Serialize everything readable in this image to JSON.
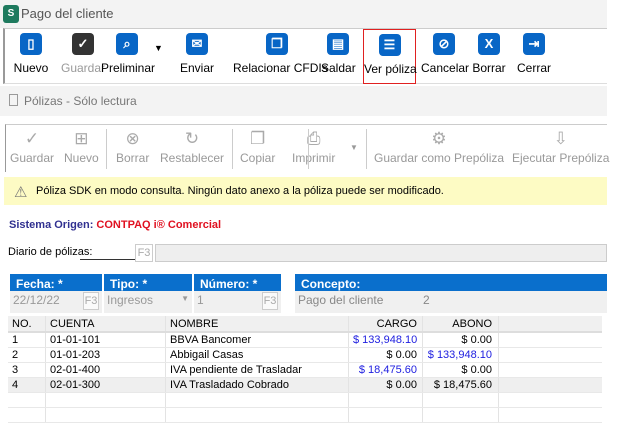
{
  "window": {
    "title": "Pago del cliente",
    "app_icon": "S"
  },
  "toolbar": [
    {
      "label": "Nuevo",
      "icon": "new-document-icon",
      "glyph": "▯",
      "enabled": true
    },
    {
      "label": "Guardar",
      "icon": "checkmark-icon",
      "glyph": "✓",
      "enabled": false
    },
    {
      "label": "Preliminar",
      "icon": "preview-icon",
      "glyph": "⌕",
      "enabled": true
    },
    {
      "label": "Enviar",
      "icon": "send-mail-icon",
      "glyph": "✉",
      "enabled": true
    },
    {
      "label": "Relacionar CFDIs",
      "icon": "copy-documents-icon",
      "glyph": "❐",
      "enabled": true
    },
    {
      "label": "Saldar",
      "icon": "settle-icon",
      "glyph": "▤",
      "enabled": true
    },
    {
      "label": "Ver póliza",
      "icon": "list-document-icon",
      "glyph": "☰",
      "enabled": true
    },
    {
      "label": "Cancelar",
      "icon": "cancel-icon",
      "glyph": "⊘",
      "enabled": true
    },
    {
      "label": "Borrar",
      "icon": "delete-x-icon",
      "glyph": "X",
      "enabled": true
    },
    {
      "label": "Cerrar",
      "icon": "exit-door-icon",
      "glyph": "⇥",
      "enabled": true
    }
  ],
  "polizas": {
    "title": "Pólizas - Sólo lectura",
    "toolbar": [
      {
        "label": "Guardar",
        "glyph": "✓"
      },
      {
        "label": "Nuevo",
        "glyph": "⊞"
      },
      {
        "label": "Borrar",
        "glyph": "⊗"
      },
      {
        "label": "Restablecer",
        "glyph": "↻"
      },
      {
        "label": "Copiar",
        "glyph": "❐"
      },
      {
        "label": "Imprimir",
        "glyph": "⎙"
      },
      {
        "label": "Guardar como Prepóliza",
        "glyph": "⚙"
      },
      {
        "label": "Ejecutar Prepóliza",
        "glyph": "⇩"
      }
    ],
    "banner": "Póliza SDK en modo consulta. Ningún dato anexo a la póliza puede ser modificado.",
    "origin_label": "Sistema Origen:",
    "origin_value": "CONTPAQ i® Comercial",
    "diario_label": "Diario de pólizas:",
    "f3": "F3",
    "fecha_label": "Fecha: *",
    "fecha": "22/12/22",
    "tipo_label": "Tipo: *",
    "tipo": "Ingresos",
    "numero_label": "Número: *",
    "numero": "1",
    "concepto_label": "Concepto:",
    "concepto": "Pago del cliente",
    "concepto_extra": "2",
    "columns": [
      "NO.",
      "CUENTA",
      "NOMBRE",
      "CARGO",
      "ABONO"
    ],
    "rows": [
      {
        "no": "1",
        "cuenta": "01-01-101",
        "nombre": "BBVA Bancomer",
        "cargo": "$ 133,948.10",
        "abono": "$ 0.00"
      },
      {
        "no": "2",
        "cuenta": "01-01-203",
        "nombre": "Abbigail Casas",
        "cargo": "$ 0.00",
        "abono": "$ 133,948.10"
      },
      {
        "no": "3",
        "cuenta": "02-01-400",
        "nombre": "IVA pendiente de Trasladar",
        "cargo": "$ 18,475.60",
        "abono": "$ 0.00"
      },
      {
        "no": "4",
        "cuenta": "02-01-300",
        "nombre": "IVA Trasladado Cobrado",
        "cargo": "$ 0.00",
        "abono": "$ 18,475.60"
      }
    ]
  }
}
